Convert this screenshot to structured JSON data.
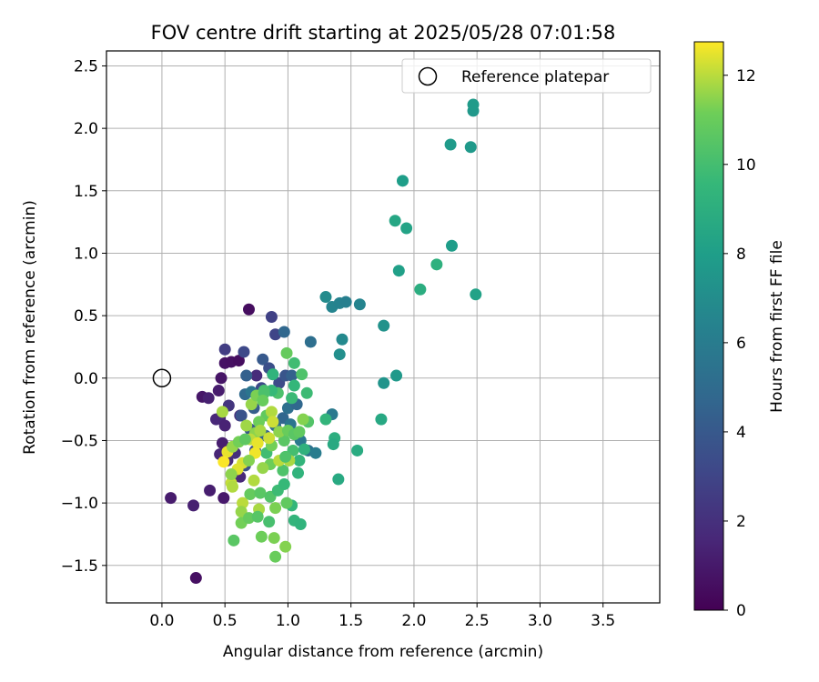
{
  "chart_data": {
    "type": "scatter",
    "title": "FOV centre drift starting at 2025/05/28 07:01:58",
    "xlabel": "Angular distance from reference (arcmin)",
    "ylabel": "Rotation from reference (arcmin)",
    "xlim": [
      -0.44,
      3.95
    ],
    "ylim": [
      -1.8,
      2.62
    ],
    "xticks": [
      0.0,
      0.5,
      1.0,
      1.5,
      2.0,
      2.5,
      3.0,
      3.5
    ],
    "yticks": [
      -1.5,
      -1.0,
      -0.5,
      0.0,
      0.5,
      1.0,
      1.5,
      2.0,
      2.5
    ],
    "xtick_labels": [
      "0.0",
      "0.5",
      "1.0",
      "1.5",
      "2.0",
      "2.5",
      "3.0",
      "3.5"
    ],
    "ytick_labels": [
      "−1.5",
      "−1.0",
      "−0.5",
      "0.0",
      "0.5",
      "1.0",
      "1.5",
      "2.0",
      "2.5"
    ],
    "grid": true,
    "legend": {
      "position": "top-right",
      "entries": [
        {
          "label": "Reference platepar",
          "marker": "open-circle"
        }
      ]
    },
    "reference_point": {
      "x": 0.0,
      "y": 0.0
    },
    "colorbar": {
      "label": "Hours from first FF file",
      "colormap": "viridis",
      "range": [
        0,
        12.75
      ],
      "ticks": [
        0,
        2,
        4,
        6,
        8,
        10,
        12
      ],
      "tick_labels": [
        "0",
        "2",
        "4",
        "6",
        "8",
        "10",
        "12"
      ]
    },
    "points": [
      [
        0.69,
        0.55,
        0.5
      ],
      [
        0.27,
        -1.6,
        0.6
      ],
      [
        0.07,
        -0.96,
        1.1
      ],
      [
        0.25,
        -1.02,
        1.3
      ],
      [
        0.38,
        -0.9,
        1.2
      ],
      [
        0.49,
        -0.96,
        1.0
      ],
      [
        0.32,
        -0.15,
        0.9
      ],
      [
        0.45,
        -0.1,
        1.1
      ],
      [
        0.47,
        0.0,
        0.8
      ],
      [
        0.5,
        0.12,
        0.7
      ],
      [
        0.55,
        0.13,
        0.6
      ],
      [
        0.61,
        0.14,
        0.5
      ],
      [
        0.37,
        -0.16,
        1.3
      ],
      [
        0.46,
        -0.32,
        1.5
      ],
      [
        0.43,
        -0.33,
        1.6
      ],
      [
        0.5,
        -0.38,
        1.4
      ],
      [
        0.48,
        -0.52,
        1.2
      ],
      [
        0.46,
        -0.61,
        1.5
      ],
      [
        0.52,
        -0.66,
        1.8
      ],
      [
        0.62,
        -0.79,
        1.6
      ],
      [
        0.58,
        -0.6,
        2.0
      ],
      [
        0.62,
        -0.3,
        1.9
      ],
      [
        0.53,
        -0.22,
        2.2
      ],
      [
        0.5,
        0.23,
        2.6
      ],
      [
        0.65,
        0.21,
        3.2
      ],
      [
        0.75,
        0.02,
        1.8
      ],
      [
        0.87,
        0.49,
        2.8
      ],
      [
        0.9,
        0.35,
        3.0
      ],
      [
        0.97,
        0.37,
        4.8
      ],
      [
        0.8,
        0.15,
        4.0
      ],
      [
        0.85,
        0.08,
        3.5
      ],
      [
        0.88,
        0.03,
        3.0
      ],
      [
        0.93,
        -0.04,
        3.3
      ],
      [
        0.98,
        0.02,
        3.8
      ],
      [
        1.03,
        0.02,
        4.4
      ],
      [
        0.79,
        -0.08,
        3.2
      ],
      [
        0.67,
        0.02,
        4.4
      ],
      [
        0.66,
        -0.13,
        4.9
      ],
      [
        0.71,
        -0.11,
        5.6
      ],
      [
        0.73,
        -0.24,
        4.2
      ],
      [
        0.63,
        -0.3,
        3.7
      ],
      [
        0.7,
        -0.41,
        3.9
      ],
      [
        0.74,
        -0.58,
        3.6
      ],
      [
        0.66,
        -0.7,
        3.6
      ],
      [
        0.82,
        -0.46,
        4.5
      ],
      [
        0.9,
        -0.38,
        5.0
      ],
      [
        0.96,
        -0.32,
        4.7
      ],
      [
        1.0,
        -0.24,
        5.2
      ],
      [
        1.07,
        -0.21,
        4.8
      ],
      [
        1.02,
        -0.37,
        5.6
      ],
      [
        1.1,
        -0.5,
        5.8
      ],
      [
        1.16,
        -0.58,
        5.3
      ],
      [
        1.22,
        -0.6,
        6.0
      ],
      [
        1.18,
        0.29,
        5.2
      ],
      [
        1.3,
        0.65,
        6.9
      ],
      [
        1.35,
        0.57,
        6.5
      ],
      [
        1.41,
        0.6,
        6.4
      ],
      [
        1.46,
        0.61,
        6.2
      ],
      [
        1.57,
        0.59,
        6.5
      ],
      [
        1.43,
        0.31,
        6.8
      ],
      [
        1.41,
        0.19,
        7.1
      ],
      [
        1.35,
        -0.29,
        5.8
      ],
      [
        1.76,
        0.42,
        7.3
      ],
      [
        1.86,
        0.02,
        7.7
      ],
      [
        1.76,
        -0.04,
        7.4
      ],
      [
        1.74,
        -0.33,
        8.6
      ],
      [
        1.85,
        1.26,
        8.5
      ],
      [
        1.94,
        1.2,
        8.3
      ],
      [
        1.91,
        1.58,
        8.0
      ],
      [
        1.88,
        0.86,
        8.1
      ],
      [
        2.05,
        0.71,
        8.9
      ],
      [
        2.18,
        0.91,
        9.1
      ],
      [
        2.3,
        1.06,
        7.9
      ],
      [
        2.29,
        1.87,
        7.8
      ],
      [
        2.45,
        1.85,
        7.7
      ],
      [
        2.47,
        2.14,
        7.6
      ],
      [
        2.47,
        2.19,
        7.8
      ],
      [
        2.49,
        0.67,
        8.2
      ],
      [
        1.4,
        -0.81,
        8.7
      ],
      [
        1.55,
        -0.58,
        8.8
      ],
      [
        1.37,
        -0.48,
        9.0
      ],
      [
        1.36,
        -0.53,
        8.7
      ],
      [
        1.3,
        -0.33,
        9.4
      ],
      [
        1.15,
        -0.12,
        9.8
      ],
      [
        1.11,
        0.03,
        10.3
      ],
      [
        1.05,
        0.12,
        9.9
      ],
      [
        0.99,
        0.2,
        10.9
      ],
      [
        1.05,
        -0.06,
        9.5
      ],
      [
        1.03,
        -0.16,
        9.7
      ],
      [
        1.16,
        -0.35,
        10.4
      ],
      [
        0.92,
        -0.12,
        10.2
      ],
      [
        0.87,
        -0.1,
        9.6
      ],
      [
        0.81,
        -0.1,
        10.1
      ],
      [
        0.88,
        0.03,
        9.3
      ],
      [
        0.83,
        -0.3,
        10.8
      ],
      [
        0.77,
        -0.35,
        11.1
      ],
      [
        0.74,
        -0.44,
        11.5
      ],
      [
        0.7,
        -0.49,
        12.0
      ],
      [
        0.83,
        -0.6,
        9.9
      ],
      [
        0.87,
        -0.54,
        11.2
      ],
      [
        0.97,
        -0.5,
        10.6
      ],
      [
        1.04,
        -0.58,
        10.0
      ],
      [
        1.09,
        -0.66,
        9.4
      ],
      [
        1.13,
        -0.57,
        9.2
      ],
      [
        0.96,
        -0.74,
        10.3
      ],
      [
        0.86,
        -0.69,
        11.1
      ],
      [
        0.8,
        -0.72,
        11.6
      ],
      [
        0.73,
        -0.82,
        11.9
      ],
      [
        0.64,
        -0.68,
        12.3
      ],
      [
        0.6,
        -0.73,
        12.4
      ],
      [
        0.55,
        -0.84,
        12.1
      ],
      [
        0.52,
        -0.59,
        12.5
      ],
      [
        0.49,
        -0.67,
        12.7
      ],
      [
        0.56,
        -0.55,
        11.6
      ],
      [
        0.61,
        -0.51,
        11.2
      ],
      [
        0.66,
        -0.49,
        10.7
      ],
      [
        0.55,
        -0.77,
        11.5
      ],
      [
        0.56,
        -0.87,
        11.9
      ],
      [
        0.7,
        -0.93,
        10.9
      ],
      [
        0.78,
        -0.92,
        10.6
      ],
      [
        0.86,
        -0.95,
        10.4
      ],
      [
        0.92,
        -0.9,
        9.8
      ],
      [
        0.97,
        -0.85,
        9.6
      ],
      [
        1.08,
        -0.76,
        9.3
      ],
      [
        1.03,
        -1.02,
        9.5
      ],
      [
        0.99,
        -1.0,
        10.8
      ],
      [
        0.9,
        -1.04,
        11.3
      ],
      [
        0.77,
        -1.05,
        11.8
      ],
      [
        0.64,
        -1.0,
        12.0
      ],
      [
        0.63,
        -1.07,
        11.6
      ],
      [
        0.63,
        -1.16,
        11.2
      ],
      [
        0.69,
        -1.12,
        10.9
      ],
      [
        0.76,
        -1.11,
        10.5
      ],
      [
        0.85,
        -1.15,
        10.1
      ],
      [
        1.05,
        -1.14,
        9.4
      ],
      [
        1.1,
        -1.17,
        9.3
      ],
      [
        0.57,
        -1.3,
        10.6
      ],
      [
        0.79,
        -1.27,
        11.1
      ],
      [
        0.89,
        -1.28,
        11.3
      ],
      [
        0.98,
        -1.35,
        11.4
      ],
      [
        0.9,
        -1.43,
        11.0
      ],
      [
        0.48,
        -0.27,
        11.8
      ],
      [
        0.67,
        -0.38,
        11.7
      ],
      [
        0.71,
        -0.21,
        11.6
      ],
      [
        0.75,
        -0.14,
        11.3
      ],
      [
        0.81,
        -0.12,
        10.2
      ],
      [
        0.8,
        -0.18,
        11.0
      ],
      [
        0.87,
        -0.27,
        11.9
      ],
      [
        0.88,
        -0.35,
        12.2
      ],
      [
        0.93,
        -0.43,
        11.5
      ],
      [
        1.0,
        -0.42,
        11.0
      ],
      [
        1.05,
        -0.45,
        10.6
      ],
      [
        1.09,
        -0.43,
        10.8
      ],
      [
        1.12,
        -0.33,
        11.4
      ],
      [
        1.01,
        -0.66,
        11.8
      ],
      [
        0.93,
        -0.66,
        12.0
      ],
      [
        0.98,
        -0.63,
        10.3
      ],
      [
        0.76,
        -0.52,
        12.5
      ],
      [
        0.74,
        -0.6,
        12.6
      ],
      [
        0.69,
        -0.66,
        11.4
      ],
      [
        0.78,
        -0.42,
        11.8
      ],
      [
        0.85,
        -0.48,
        12.2
      ]
    ]
  }
}
